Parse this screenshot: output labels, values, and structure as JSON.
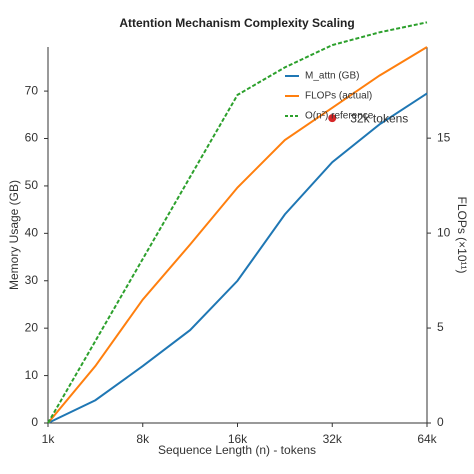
{
  "chart_data": {
    "type": "line",
    "title": "Attention Mechanism Complexity Scaling",
    "xlabel": "Sequence Length (n) - tokens",
    "ylabel": "Memory Usage (GB)",
    "y2label": "FLOPs (×10¹¹)",
    "x": [
      0,
      0.5,
      1,
      1.5,
      2,
      2.5,
      3,
      3.5,
      4
    ],
    "xlim": [
      0,
      4
    ],
    "xticks": [
      {
        "value": 0,
        "label": "1k"
      },
      {
        "value": 1,
        "label": "8k"
      },
      {
        "value": 2,
        "label": "16k"
      },
      {
        "value": 3,
        "label": "32k"
      },
      {
        "value": 4,
        "label": "64k"
      }
    ],
    "ylim": [
      0,
      79.3
    ],
    "yticks": [
      0,
      10,
      20,
      30,
      40,
      50,
      60,
      70
    ],
    "y2lim": [
      0,
      19.8
    ],
    "y2ticks": [
      0,
      5,
      10,
      15
    ],
    "grid": false,
    "legend": "upper right",
    "series": [
      {
        "name": "M_attn (GB)",
        "color": "#1f77b4",
        "style": "solid",
        "values": [
          0,
          4.8,
          12,
          19.6,
          30,
          44,
          55,
          63,
          69.5
        ]
      },
      {
        "name": "FLOPs (actual)",
        "color": "#ff7f0e",
        "style": "solid",
        "axis": "y2",
        "values": [
          0,
          3.0,
          6.5,
          9.4,
          12.4,
          14.9,
          16.6,
          18.3,
          19.8
        ]
      },
      {
        "name": "O(n²) reference",
        "color": "#2ca02c",
        "style": "dashed",
        "values": [
          0,
          17.3,
          34.6,
          51.9,
          69.2,
          75,
          79.7,
          82.4,
          84.5
        ]
      }
    ],
    "annotation": {
      "text": "32k tokens",
      "x": 3,
      "y": 64.3,
      "color": "#d62728"
    }
  }
}
